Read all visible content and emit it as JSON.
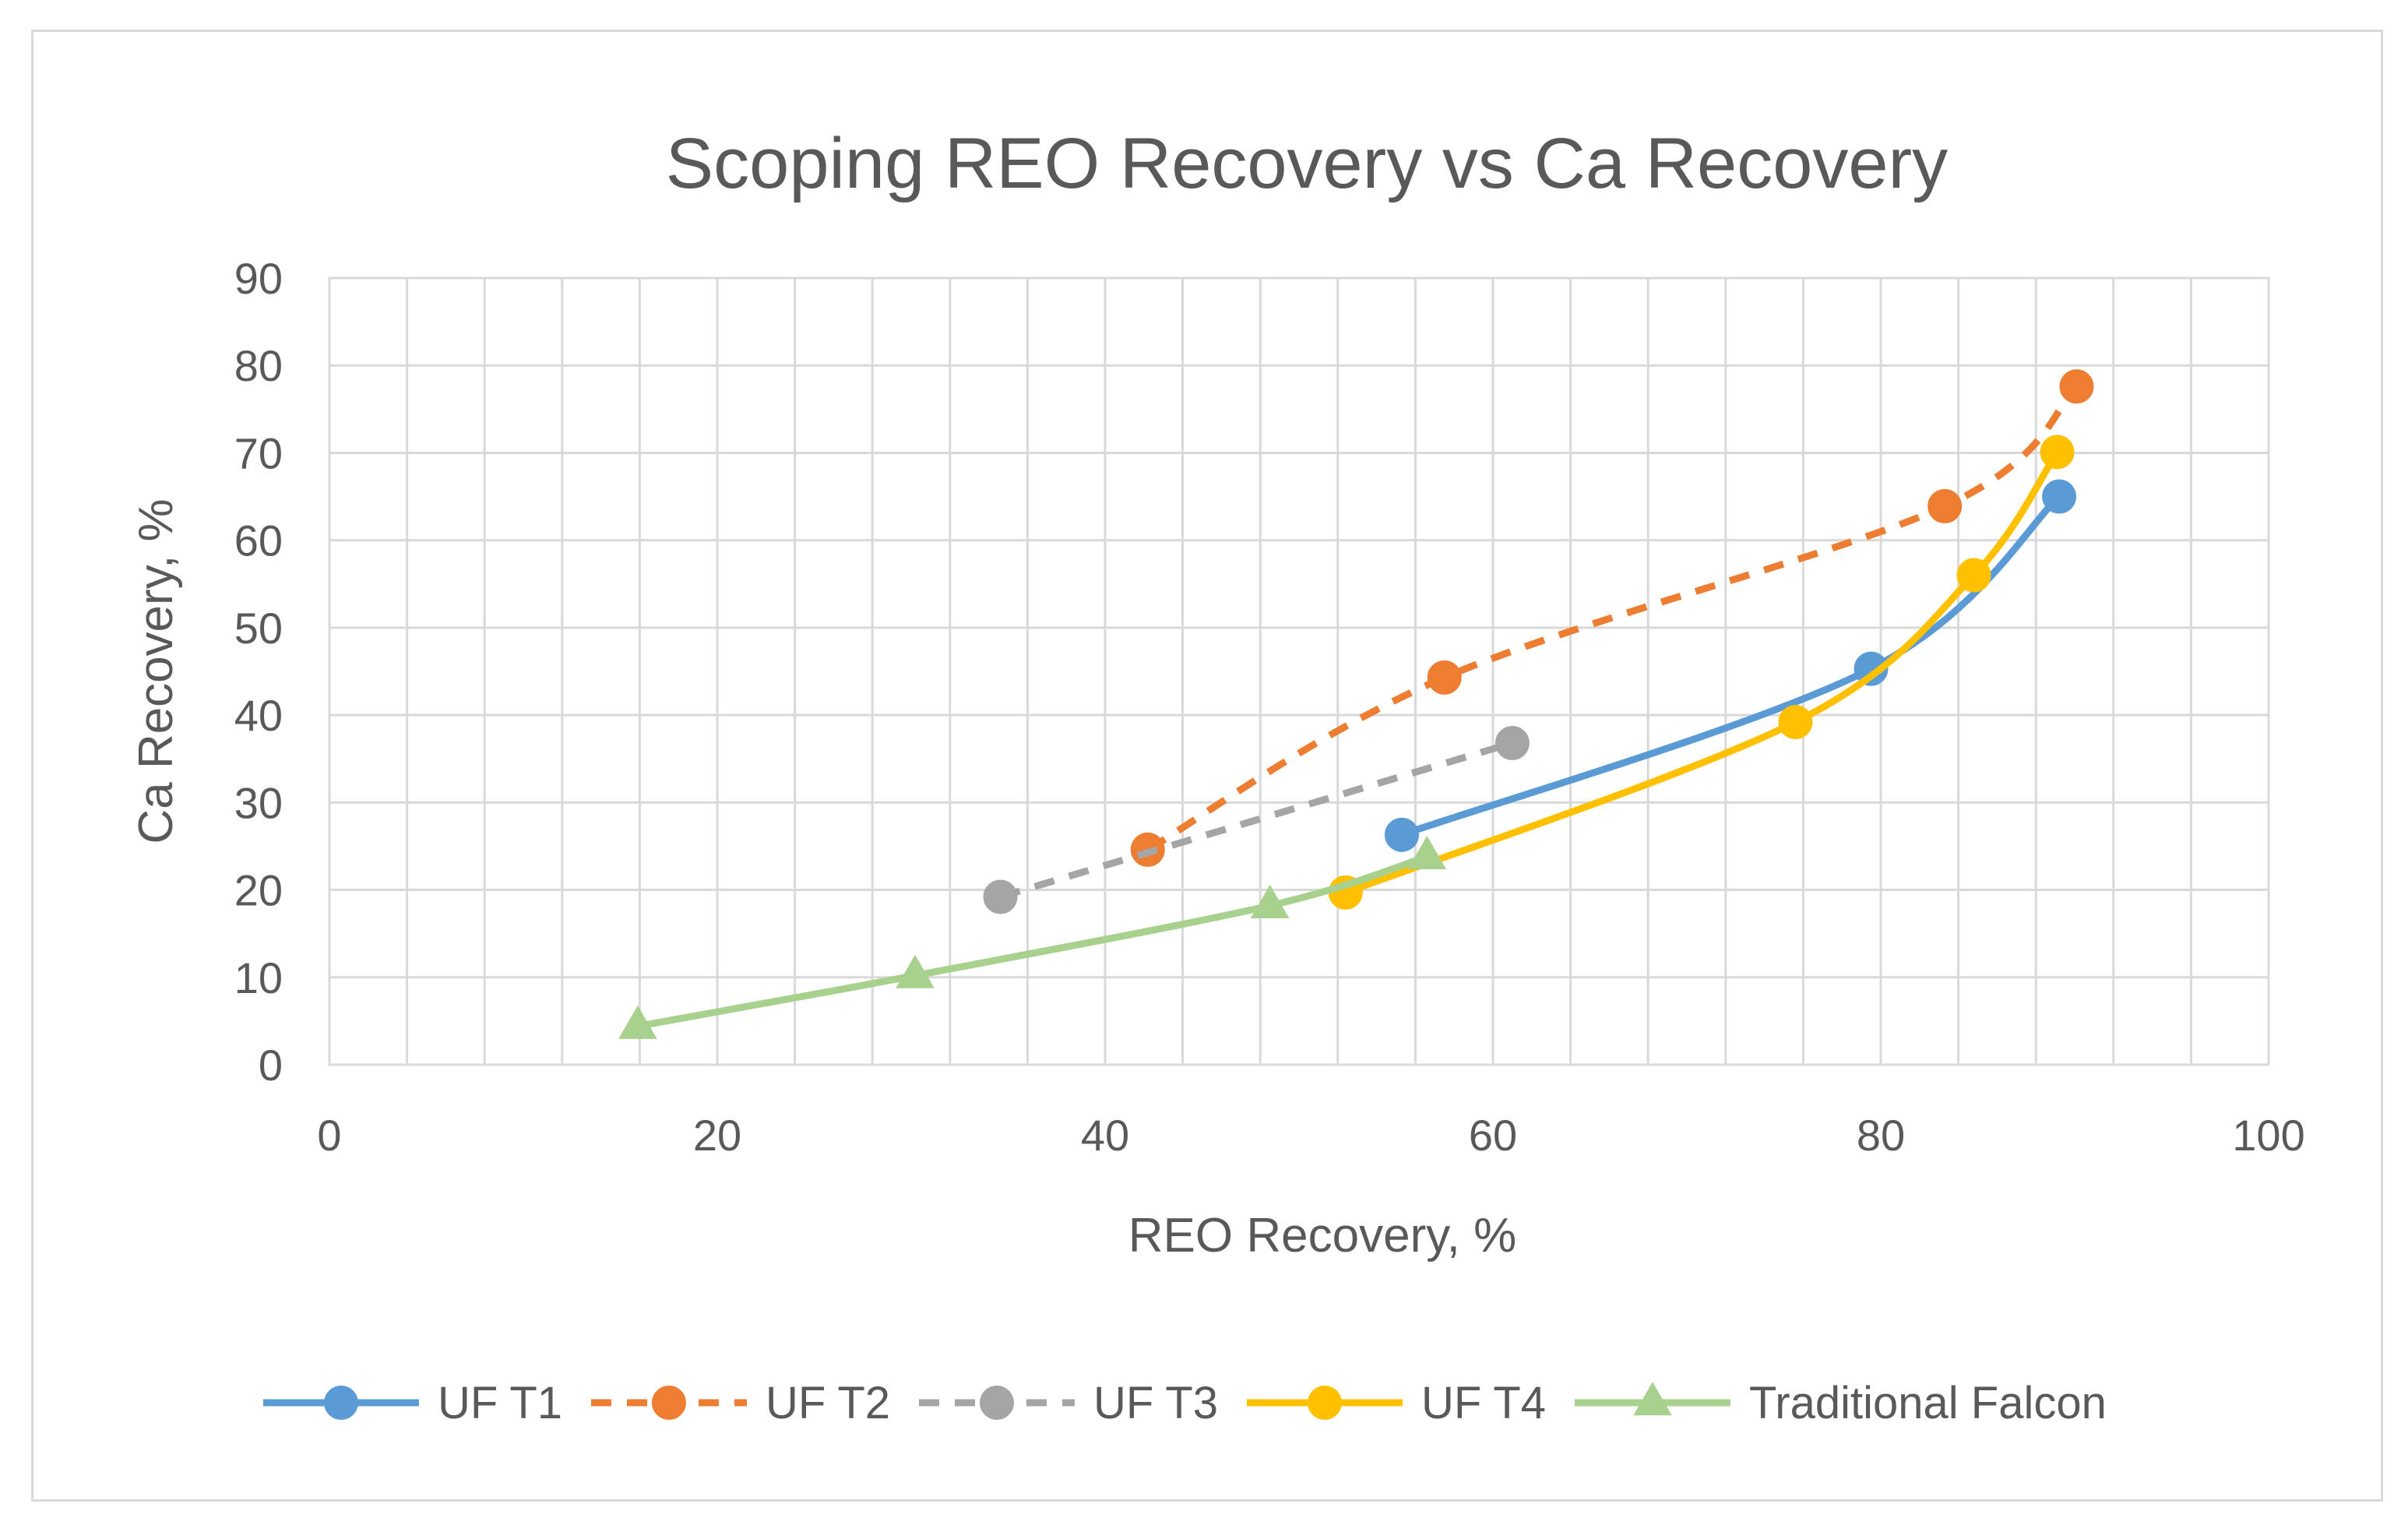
{
  "chart_data": {
    "type": "scatter",
    "title": "Scoping REO Recovery vs Ca Recovery",
    "xlabel": "REO Recovery, %",
    "ylabel": "Ca Recovery, %",
    "xlim": [
      0,
      100
    ],
    "ylim": [
      0,
      90
    ],
    "xticks": [
      0,
      20,
      40,
      60,
      80,
      100
    ],
    "yticks": [
      0,
      10,
      20,
      30,
      40,
      50,
      60,
      70,
      80,
      90
    ],
    "x_minor_step": 4,
    "y_step": 10,
    "grid": true,
    "legend_position": "bottom",
    "series": [
      {
        "name": "UF T1",
        "color": "#5b9bd5",
        "dash": "solid",
        "marker": "circle",
        "points": [
          [
            55.3,
            26.3
          ],
          [
            79.5,
            45.3
          ],
          [
            89.2,
            65.0
          ]
        ]
      },
      {
        "name": "UF T2",
        "color": "#ed7d31",
        "dash": "dashed",
        "marker": "circle",
        "points": [
          [
            42.2,
            24.6
          ],
          [
            57.5,
            44.3
          ],
          [
            83.3,
            63.9
          ],
          [
            90.1,
            77.6
          ]
        ]
      },
      {
        "name": "UF T3",
        "color": "#a5a5a5",
        "dash": "dashed",
        "marker": "circle",
        "points": [
          [
            34.6,
            19.2
          ],
          [
            61.0,
            36.8
          ]
        ]
      },
      {
        "name": "UF T4",
        "color": "#ffc000",
        "dash": "solid",
        "marker": "circle",
        "points": [
          [
            52.4,
            19.7
          ],
          [
            75.6,
            39.2
          ],
          [
            84.8,
            56.0
          ],
          [
            89.1,
            70.1
          ]
        ]
      },
      {
        "name": "Traditional Falcon",
        "color": "#a9d18e",
        "dash": "solid",
        "marker": "triangle",
        "points": [
          [
            15.9,
            4.4
          ],
          [
            30.2,
            10.2
          ],
          [
            48.5,
            18.2
          ],
          [
            56.6,
            23.8
          ]
        ]
      }
    ]
  }
}
